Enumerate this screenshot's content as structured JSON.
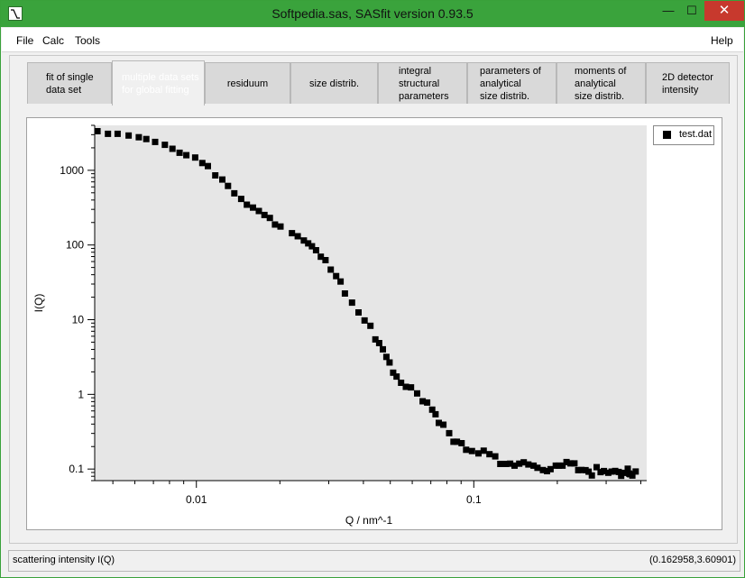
{
  "window": {
    "title": "Softpedia.sas, SASfit version 0.93.5",
    "controls": {
      "minimize": "—",
      "maximize": "☐",
      "close": "✕"
    }
  },
  "menubar": {
    "file": "File",
    "calc": "Calc",
    "tools": "Tools",
    "help": "Help"
  },
  "tabs": [
    {
      "label": "fit of single\ndata set",
      "active": false
    },
    {
      "label": "multiple data sets\nfor global fitting",
      "active": true
    },
    {
      "label": "residuum",
      "active": false
    },
    {
      "label": "size distrib.",
      "active": false
    },
    {
      "label": "integral\nstructural\nparameters",
      "active": false
    },
    {
      "label": "parameters of\nanalytical\nsize distrib.",
      "active": false
    },
    {
      "label": "moments of\nanalytical\nsize distrib.",
      "active": false
    },
    {
      "label": "2D detector\nintensity",
      "active": false
    }
  ],
  "legend": {
    "label": "test.dat"
  },
  "status": {
    "left": "scattering intensity I(Q)",
    "right": "(0.162958,3.60901)"
  },
  "chart_data": {
    "type": "scatter",
    "xlabel": "Q / nm^-1",
    "ylabel": "I(Q)",
    "xscale": "log",
    "yscale": "log",
    "xlim": [
      0.0043,
      0.42
    ],
    "ylim": [
      0.07,
      4000
    ],
    "x_tick_labels": [
      "0.01",
      "0.1"
    ],
    "y_tick_labels": [
      "0.1",
      "1",
      "10",
      "100",
      "1000"
    ],
    "legend_position": "top-right",
    "background": "#e6e6e6",
    "marker_color": "#000000",
    "series": [
      {
        "name": "test.dat",
        "x": [
          0.0044,
          0.0048,
          0.0052,
          0.0057,
          0.0062,
          0.0066,
          0.0071,
          0.0077,
          0.0082,
          0.0087,
          0.0092,
          0.0099,
          0.0105,
          0.011,
          0.0117,
          0.0124,
          0.013,
          0.0137,
          0.0145,
          0.0152,
          0.016,
          0.0168,
          0.0176,
          0.0184,
          0.0192,
          0.0201,
          0.0221,
          0.0232,
          0.0244,
          0.0253,
          0.0261,
          0.027,
          0.0281,
          0.0292,
          0.0305,
          0.0319,
          0.0331,
          0.0343,
          0.0364,
          0.0384,
          0.0404,
          0.0424,
          0.0442,
          0.0456,
          0.047,
          0.0484,
          0.0497,
          0.0512,
          0.0527,
          0.0547,
          0.0569,
          0.0594,
          0.0625,
          0.0654,
          0.0679,
          0.0708,
          0.0728,
          0.0748,
          0.0777,
          0.0815,
          0.0845,
          0.0869,
          0.0904,
          0.0938,
          0.0985,
          0.104,
          0.1086,
          0.1139,
          0.1195,
          0.1246,
          0.1306,
          0.1352,
          0.1403,
          0.1458,
          0.1514,
          0.1573,
          0.1643,
          0.1697,
          0.1775,
          0.1836,
          0.1891,
          0.1975,
          0.2026,
          0.2089,
          0.2159,
          0.2231,
          0.2305,
          0.2379,
          0.2444,
          0.2528,
          0.2593,
          0.2665,
          0.2773,
          0.2865,
          0.2946,
          0.3052,
          0.3141,
          0.3234,
          0.3328,
          0.3398,
          0.3499,
          0.359,
          0.3629,
          0.3656,
          0.373,
          0.3834
        ],
        "y": [
          3336,
          3081,
          3081,
          2922,
          2772,
          2620,
          2399,
          2197,
          1943,
          1716,
          1592,
          1484,
          1253,
          1138,
          854,
          752,
          617,
          492,
          414,
          346,
          317,
          285,
          252,
          230,
          188,
          177,
          144,
          131,
          115,
          105,
          96.2,
          85.2,
          69.6,
          62.6,
          46.8,
          38.3,
          32.4,
          22.4,
          16.9,
          12.5,
          9.75,
          8.29,
          5.44,
          4.86,
          4.01,
          3.17,
          2.67,
          1.95,
          1.73,
          1.43,
          1.26,
          1.24,
          1.03,
          0.808,
          0.778,
          0.625,
          0.541,
          0.415,
          0.392,
          0.302,
          0.232,
          0.232,
          0.222,
          0.181,
          0.174,
          0.162,
          0.176,
          0.158,
          0.148,
          0.117,
          0.117,
          0.118,
          0.111,
          0.118,
          0.123,
          0.115,
          0.111,
          0.104,
          0.0969,
          0.0936,
          0.0996,
          0.111,
          0.111,
          0.111,
          0.124,
          0.119,
          0.119,
          0.0966,
          0.0972,
          0.0966,
          0.0923,
          0.0821,
          0.106,
          0.091,
          0.0939,
          0.0891,
          0.0925,
          0.0942,
          0.0913,
          0.0812,
          0.0888,
          0.101,
          0.087,
          0.0852,
          0.0818,
          0.0926
        ]
      }
    ]
  }
}
